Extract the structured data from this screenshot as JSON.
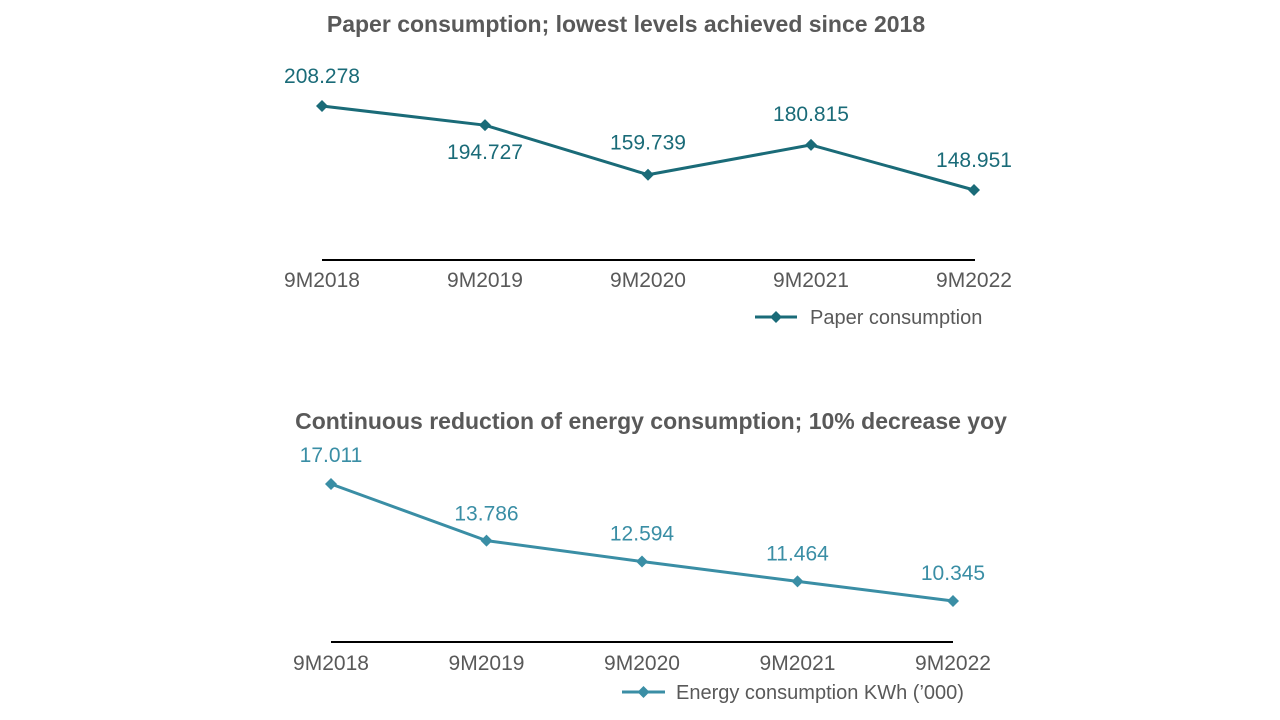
{
  "chart_data": [
    {
      "type": "line",
      "title": "Paper consumption; lowest levels achieved since 2018",
      "categories": [
        "9M2018",
        "9M2019",
        "9M2020",
        "9M2021",
        "9M2022"
      ],
      "series": [
        {
          "name": "Paper consumption",
          "values": [
            208.278,
            194.727,
            159.739,
            180.815,
            148.951
          ],
          "labels": [
            "208.278",
            "194.727",
            "159.739",
            "180.815",
            "148.951"
          ],
          "color": "#1a6b78"
        }
      ],
      "legend": "bottom-right",
      "grid": false
    },
    {
      "type": "line",
      "title": "Continuous reduction of energy consumption; 10% decrease yoy",
      "categories": [
        "9M2018",
        "9M2019",
        "9M2020",
        "9M2021",
        "9M2022"
      ],
      "series": [
        {
          "name": "Energy consumption KWh (’000)",
          "values": [
            17.011,
            13.786,
            12.594,
            11.464,
            10.345
          ],
          "labels": [
            "17.011",
            "13.786",
            "12.594",
            "11.464",
            "10.345"
          ],
          "color": "#3a8ea5"
        }
      ],
      "legend": "bottom-right",
      "grid": false
    }
  ]
}
